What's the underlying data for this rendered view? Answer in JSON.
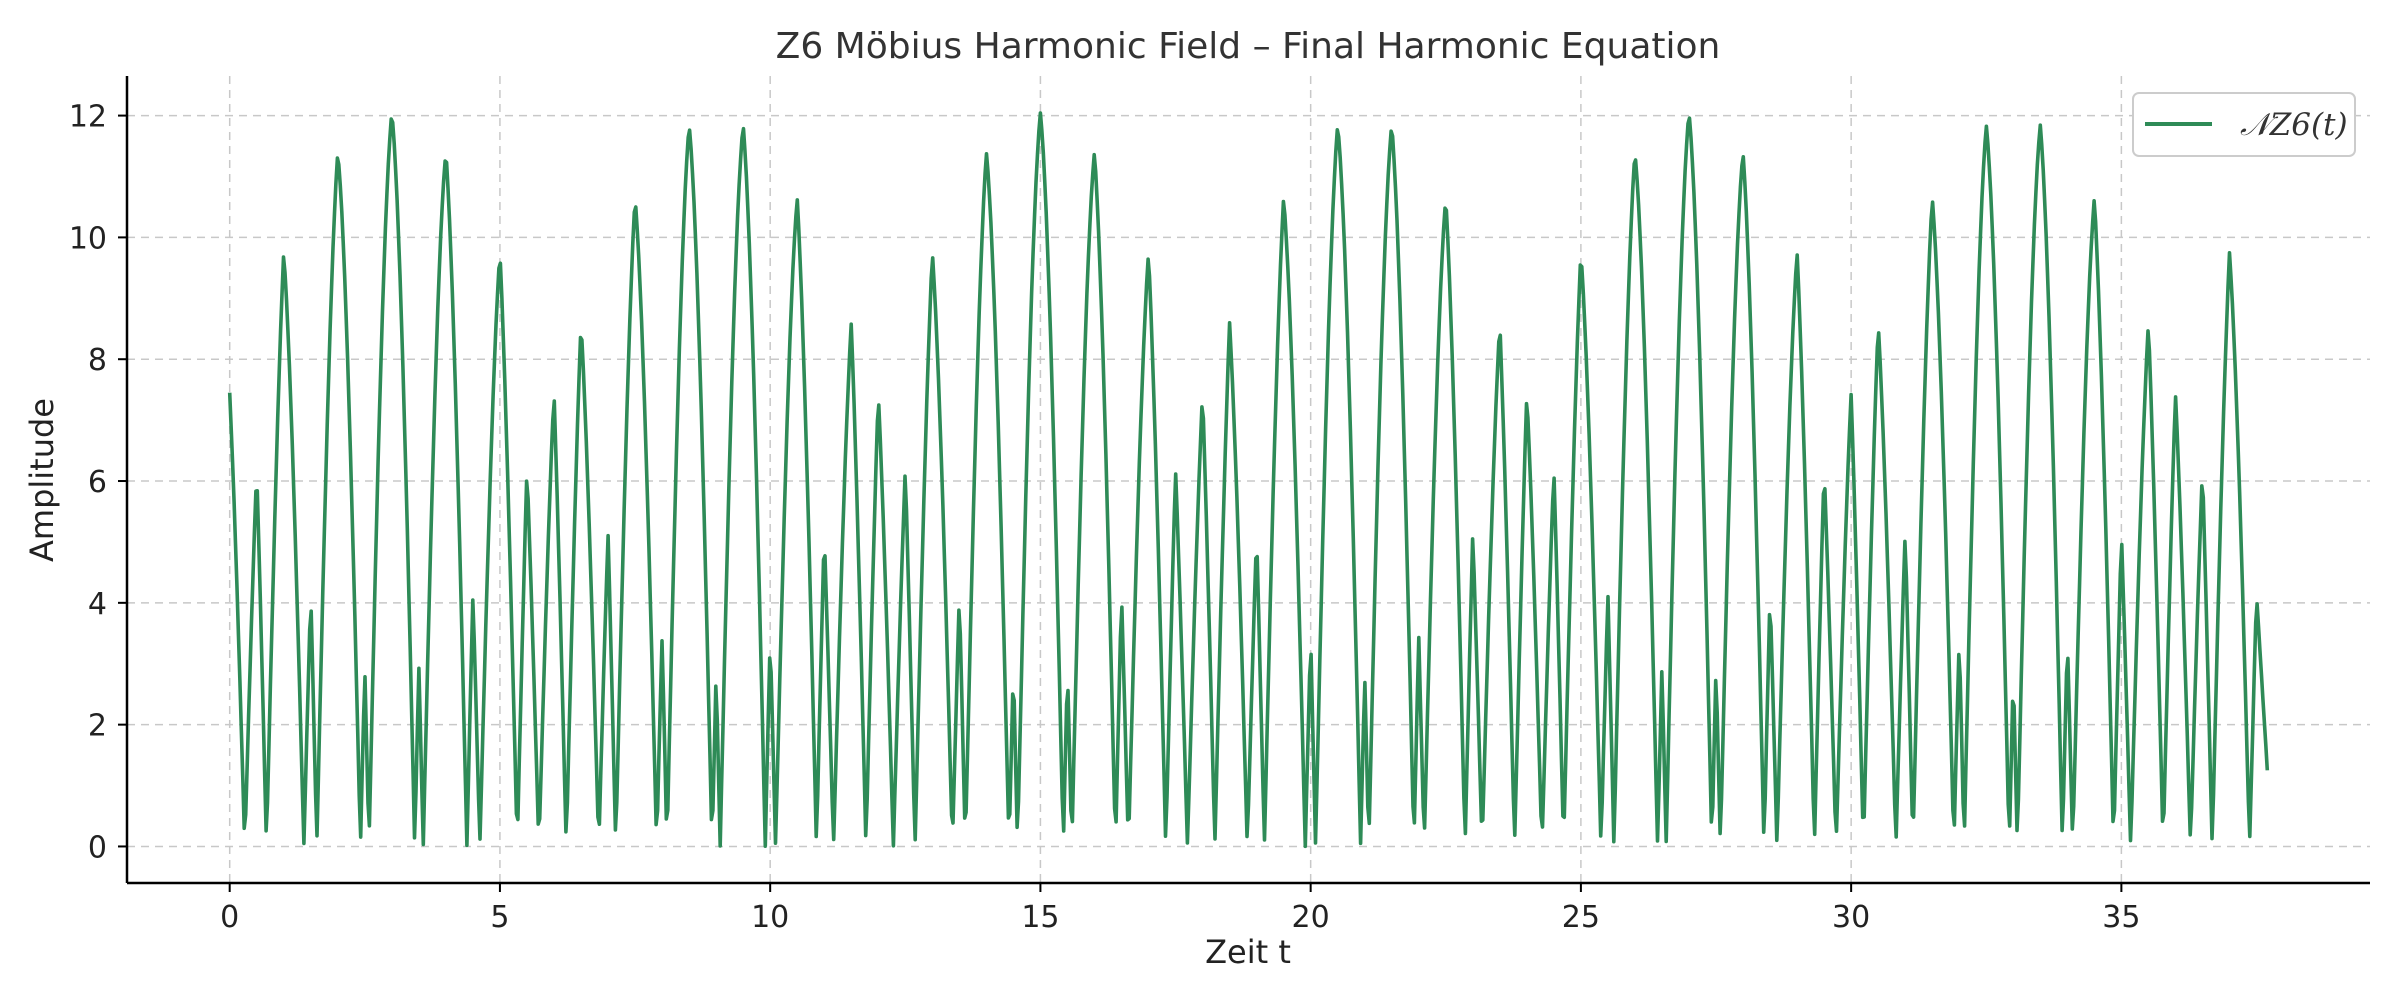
{
  "chart_data": {
    "type": "line",
    "title": "Z6 Möbius Harmonic Field – Final Harmonic Equation",
    "xlabel": "Zeit t",
    "ylabel": "Amplitude",
    "xlim": [
      -1.9,
      39.6
    ],
    "ylim": [
      -0.6,
      12.65
    ],
    "xticks": [
      0,
      5,
      10,
      15,
      20,
      25,
      30,
      35
    ],
    "yticks": [
      0,
      2,
      4,
      6,
      8,
      10,
      12
    ],
    "grid": true,
    "legend_position": "top-right",
    "series": [
      {
        "name": "𝒩Z6(t)",
        "color": "#2e8b57",
        "t_range": [
          0,
          37.7
        ],
        "peaks": [
          [
            0.0,
            7.45
          ],
          [
            0.5,
            6.2
          ],
          [
            1.0,
            9.75
          ],
          [
            1.5,
            4.15
          ],
          [
            2.0,
            11.4
          ],
          [
            2.5,
            2.95
          ],
          [
            3.0,
            12.05
          ],
          [
            3.5,
            2.95
          ],
          [
            4.0,
            11.4
          ],
          [
            4.5,
            4.15
          ],
          [
            5.0,
            9.75
          ],
          [
            5.5,
            6.2
          ],
          [
            6.0,
            7.45
          ],
          [
            6.5,
            8.6
          ],
          [
            7.0,
            5.15
          ],
          [
            7.5,
            10.65
          ],
          [
            8.0,
            3.45
          ],
          [
            8.5,
            11.85
          ],
          [
            9.0,
            2.85
          ],
          [
            9.5,
            11.85
          ],
          [
            10.0,
            3.45
          ],
          [
            10.5,
            10.65
          ],
          [
            11.0,
            5.15
          ],
          [
            11.5,
            8.6
          ],
          [
            12.0,
            7.45
          ],
          [
            12.5,
            6.2
          ],
          [
            13.0,
            9.75
          ],
          [
            13.5,
            4.15
          ],
          [
            14.0,
            11.4
          ],
          [
            14.5,
            2.95
          ],
          [
            15.0,
            12.05
          ],
          [
            15.5,
            2.95
          ],
          [
            16.0,
            11.4
          ],
          [
            16.5,
            4.15
          ],
          [
            17.0,
            9.75
          ],
          [
            17.5,
            6.2
          ],
          [
            18.0,
            7.45
          ],
          [
            18.5,
            8.6
          ],
          [
            19.0,
            5.15
          ],
          [
            19.5,
            10.65
          ],
          [
            20.0,
            3.45
          ],
          [
            20.5,
            11.85
          ],
          [
            21.0,
            2.85
          ],
          [
            21.5,
            11.85
          ],
          [
            22.0,
            3.45
          ],
          [
            22.5,
            10.65
          ],
          [
            23.0,
            5.15
          ],
          [
            23.5,
            8.6
          ],
          [
            24.0,
            7.45
          ],
          [
            24.5,
            6.2
          ],
          [
            25.0,
            9.75
          ],
          [
            25.5,
            4.15
          ],
          [
            26.0,
            11.4
          ],
          [
            26.5,
            2.95
          ],
          [
            27.0,
            12.05
          ],
          [
            27.5,
            2.95
          ],
          [
            28.0,
            11.4
          ],
          [
            28.5,
            4.15
          ],
          [
            29.0,
            9.75
          ],
          [
            29.5,
            6.2
          ],
          [
            30.0,
            7.45
          ],
          [
            30.5,
            8.6
          ],
          [
            31.0,
            5.15
          ],
          [
            31.5,
            10.65
          ],
          [
            32.0,
            3.45
          ],
          [
            32.5,
            11.85
          ],
          [
            33.0,
            2.85
          ],
          [
            33.5,
            11.85
          ],
          [
            34.0,
            3.45
          ],
          [
            34.5,
            10.65
          ],
          [
            35.0,
            5.15
          ],
          [
            35.5,
            8.6
          ],
          [
            36.0,
            7.45
          ],
          [
            36.5,
            6.2
          ],
          [
            37.0,
            9.75
          ],
          [
            37.5,
            4.15
          ]
        ],
        "end_value": 1.25
      }
    ]
  }
}
